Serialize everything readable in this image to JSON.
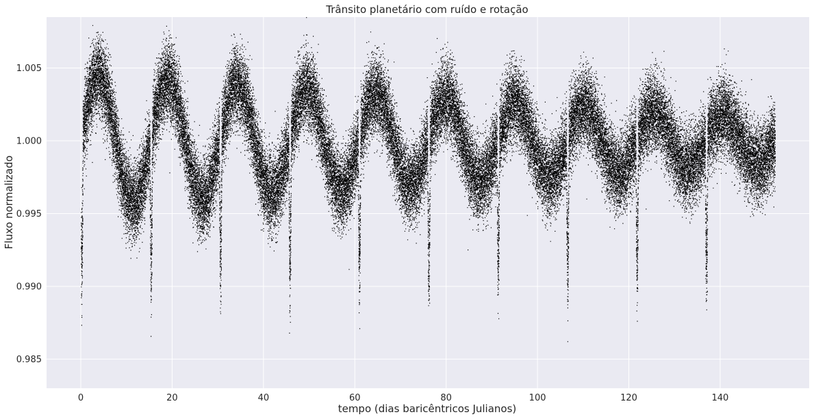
{
  "chart_data": {
    "type": "scatter",
    "title": "Trânsito planetário com ruído e rotação",
    "xlabel": "tempo (dias baricêntricos Julianos)",
    "ylabel": "Fluxo normalizado",
    "xlim": [
      -7.5,
      159.5
    ],
    "ylim": [
      0.983,
      1.0085
    ],
    "x_ticks": [
      0,
      20,
      40,
      60,
      80,
      100,
      120,
      140
    ],
    "y_ticks": [
      0.985,
      0.99,
      0.995,
      1.0,
      1.005
    ],
    "x_tick_labels": [
      "0",
      "20",
      "40",
      "60",
      "80",
      "100",
      "120",
      "140"
    ],
    "y_tick_labels": [
      "0.985",
      "0.990",
      "0.995",
      "1.000",
      "1.005"
    ],
    "grid": true,
    "colors": {
      "background": "#eaeaf2",
      "grid": "#ffffff",
      "marker": "#000000"
    },
    "series": [
      {
        "time_range": [
          0,
          152
        ],
        "mean_flux": 1.0,
        "rotation_amplitude_start": 0.0045,
        "rotation_amplitude_end": 0.0015,
        "rotation_period": 15.2,
        "noise_sigma": 0.0013,
        "transit_times": [
          0.15,
          15.35,
          30.55,
          45.75,
          60.95,
          76.15,
          91.35,
          106.55,
          121.75,
          136.95
        ],
        "transit_depth": 0.0105,
        "transit_duration": 0.5
      }
    ]
  }
}
